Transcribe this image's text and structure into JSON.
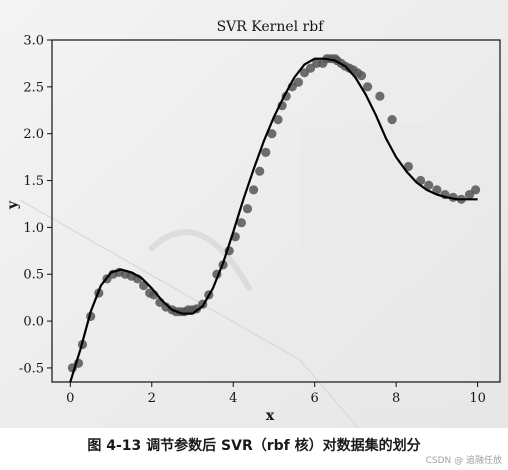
{
  "chart_data": {
    "type": "scatter",
    "title": "SVR Kernel rbf",
    "xlabel": "x",
    "ylabel": "y",
    "xlim": [
      -0.45,
      10.55
    ],
    "ylim": [
      -0.65,
      3.0
    ],
    "xticks": [
      0,
      2,
      4,
      6,
      8,
      10
    ],
    "yticks": [
      -0.5,
      0.0,
      0.5,
      1.0,
      1.5,
      2.0,
      2.5,
      3.0
    ],
    "xtick_labels": [
      "0",
      "2",
      "4",
      "6",
      "8",
      "10"
    ],
    "ytick_labels": [
      "-0.5",
      "0.0",
      "0.5",
      "1.0",
      "1.5",
      "2.0",
      "2.5",
      "3.0"
    ],
    "grid": false,
    "series": [
      {
        "kind": "points",
        "color": "#555555",
        "x": [
          0.05,
          0.2,
          0.3,
          0.5,
          0.7,
          0.9,
          1.05,
          1.2,
          1.35,
          1.5,
          1.65,
          1.8,
          1.95,
          2.05,
          2.2,
          2.35,
          2.5,
          2.6,
          2.7,
          2.8,
          2.9,
          3.0,
          3.1,
          3.25,
          3.4,
          3.6,
          3.75,
          3.9,
          4.05,
          4.2,
          4.35,
          4.5,
          4.65,
          4.8,
          4.95,
          5.1,
          5.2,
          5.3,
          5.45,
          5.6,
          5.75,
          5.9,
          6.05,
          6.2,
          6.3,
          6.4,
          6.5,
          6.55,
          6.65,
          6.75,
          6.85,
          6.95,
          7.05,
          7.15,
          7.3,
          7.6,
          7.9,
          8.3,
          8.6,
          8.8,
          9.0,
          9.2,
          9.4,
          9.6,
          9.8,
          9.95
        ],
        "y": [
          -0.5,
          -0.45,
          -0.25,
          0.05,
          0.3,
          0.45,
          0.5,
          0.52,
          0.5,
          0.48,
          0.45,
          0.38,
          0.3,
          0.28,
          0.2,
          0.15,
          0.12,
          0.1,
          0.1,
          0.1,
          0.12,
          0.12,
          0.13,
          0.18,
          0.28,
          0.5,
          0.6,
          0.75,
          0.9,
          1.05,
          1.2,
          1.4,
          1.6,
          1.8,
          2.0,
          2.15,
          2.3,
          2.4,
          2.5,
          2.55,
          2.65,
          2.7,
          2.75,
          2.75,
          2.8,
          2.8,
          2.8,
          2.78,
          2.75,
          2.72,
          2.7,
          2.68,
          2.65,
          2.62,
          2.5,
          2.4,
          2.15,
          1.65,
          1.5,
          1.45,
          1.4,
          1.35,
          1.32,
          1.3,
          1.35,
          1.4
        ]
      },
      {
        "kind": "line",
        "color": "#000000",
        "x": [
          0.0,
          0.25,
          0.5,
          0.75,
          1.0,
          1.25,
          1.5,
          1.75,
          2.0,
          2.25,
          2.5,
          2.75,
          3.0,
          3.25,
          3.5,
          3.75,
          4.0,
          4.25,
          4.5,
          4.75,
          5.0,
          5.25,
          5.5,
          5.75,
          6.0,
          6.25,
          6.5,
          6.75,
          7.0,
          7.25,
          7.5,
          7.75,
          8.0,
          8.25,
          8.5,
          8.75,
          9.0,
          9.25,
          9.5,
          9.75,
          10.0
        ],
        "y": [
          -0.65,
          -0.3,
          0.1,
          0.38,
          0.52,
          0.55,
          0.52,
          0.46,
          0.35,
          0.22,
          0.12,
          0.08,
          0.08,
          0.16,
          0.35,
          0.62,
          0.95,
          1.3,
          1.62,
          1.92,
          2.18,
          2.4,
          2.6,
          2.74,
          2.8,
          2.8,
          2.78,
          2.72,
          2.6,
          2.42,
          2.2,
          1.95,
          1.75,
          1.6,
          1.48,
          1.4,
          1.35,
          1.32,
          1.3,
          1.3,
          1.3
        ]
      }
    ]
  },
  "caption": "图 4-13   调节参数后 SVR（rbf 核）对数据集的划分",
  "watermark": "CSDN @ 追融任放"
}
